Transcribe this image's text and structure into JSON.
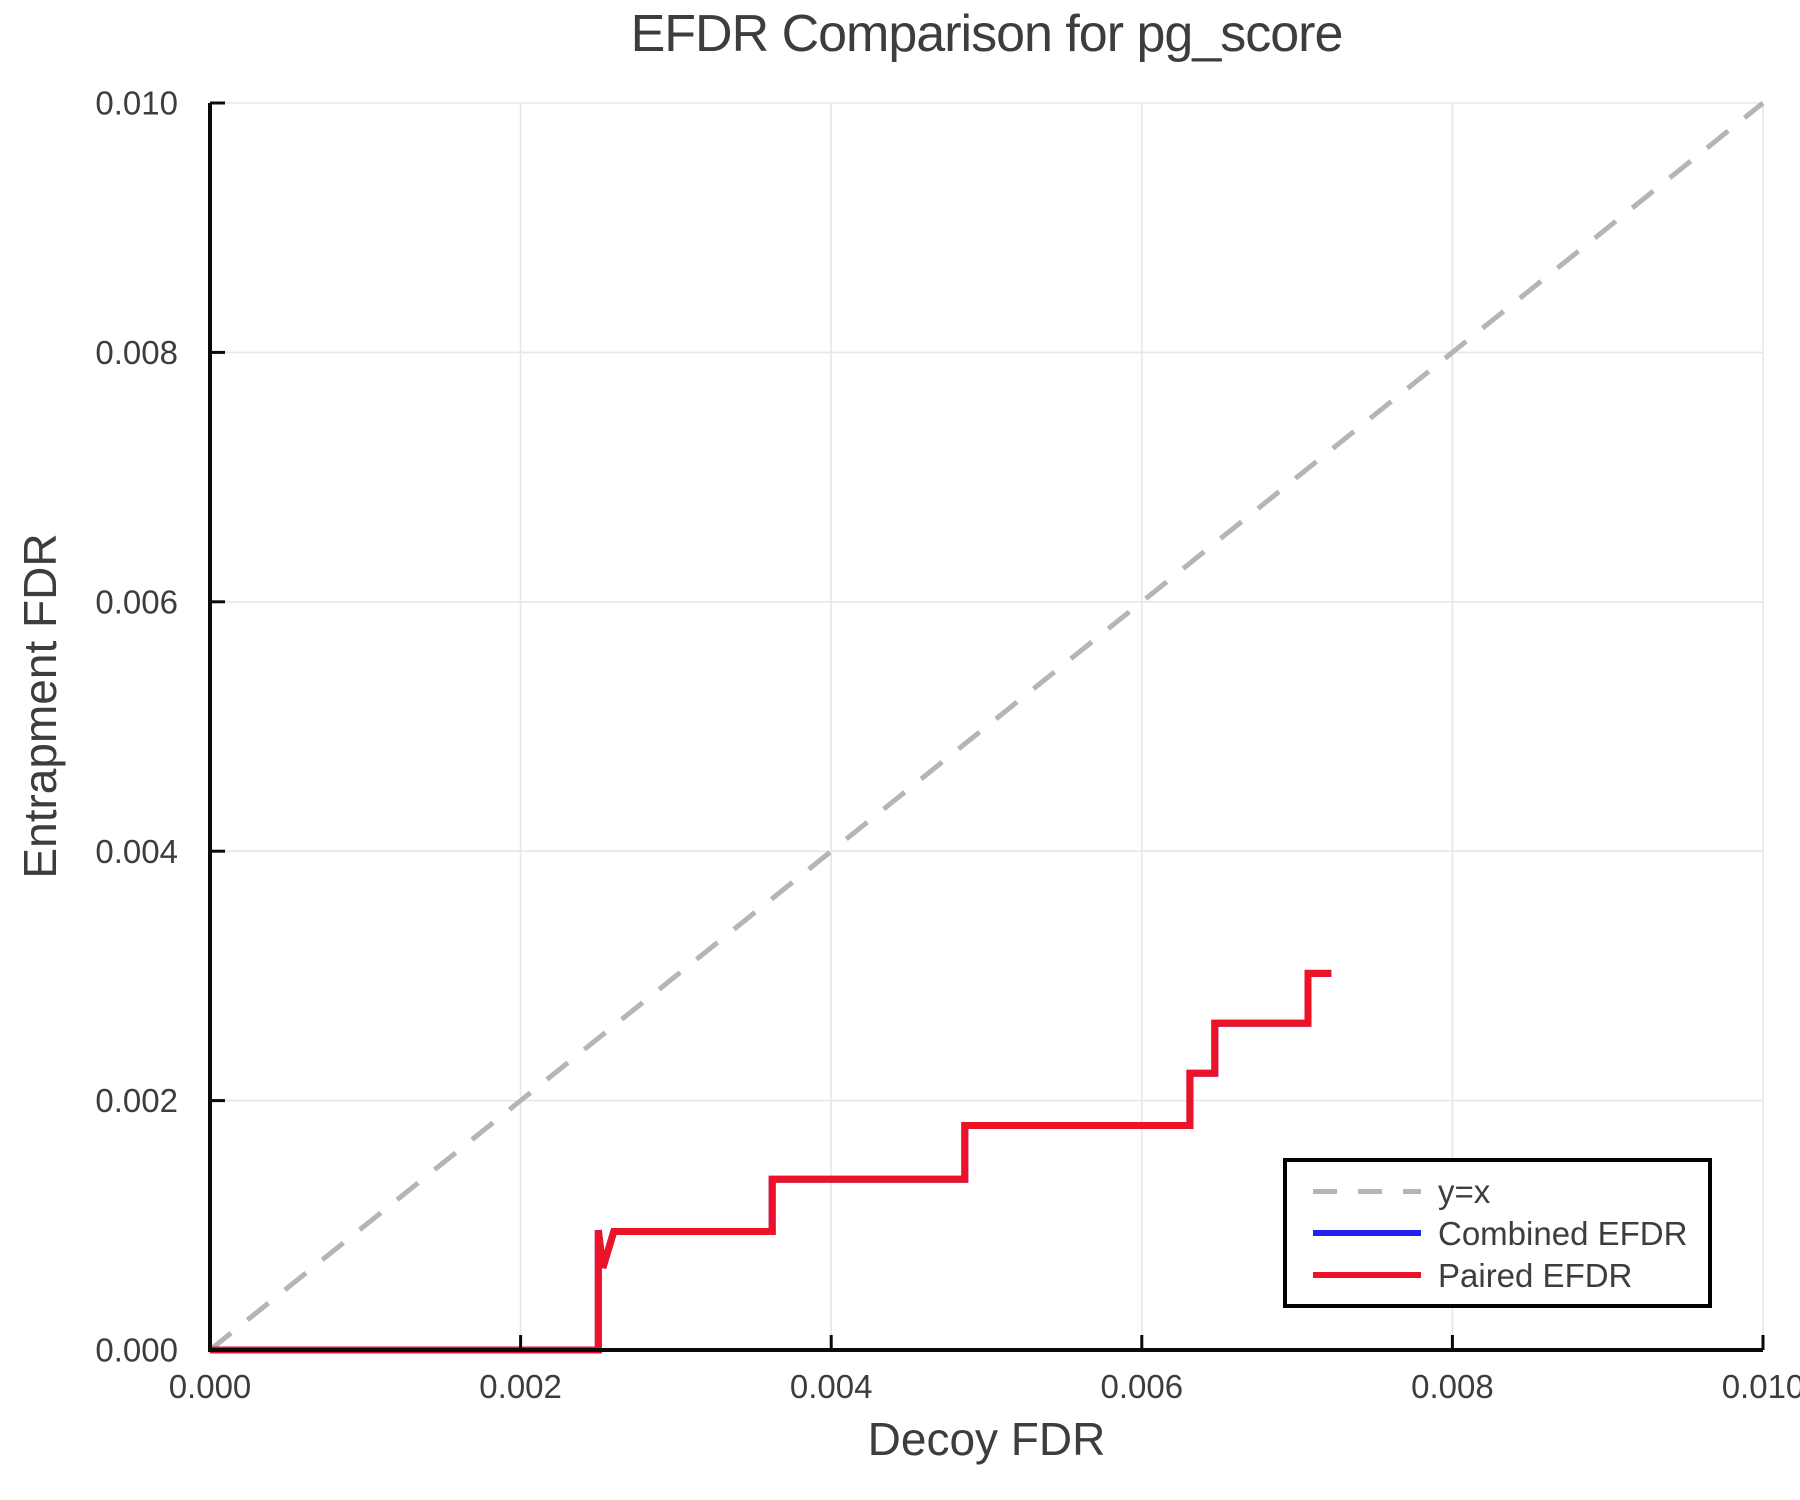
{
  "title": "EFDR Comparison for pg_score",
  "colors": {
    "text": "#3d3d3d",
    "grid": "#e7e7e7",
    "spine": "#0a0a0a",
    "background": "#ffffff"
  },
  "chart_data": {
    "type": "line",
    "title": "EFDR Comparison for pg_score",
    "xlabel": "Decoy FDR",
    "ylabel": "Entrapment FDR",
    "xlim": [
      0.0,
      0.01
    ],
    "ylim": [
      0.0,
      0.01
    ],
    "grid": true,
    "legend_position": "bottom-right",
    "xticks": {
      "values": [
        0.0,
        0.002,
        0.004,
        0.006,
        0.008,
        0.01
      ],
      "labels": [
        "0.000",
        "0.002",
        "0.004",
        "0.006",
        "0.008",
        "0.010"
      ]
    },
    "yticks": {
      "values": [
        0.0,
        0.002,
        0.004,
        0.006,
        0.008,
        0.01
      ],
      "labels": [
        "0.000",
        "0.002",
        "0.004",
        "0.006",
        "0.008",
        "0.010"
      ]
    },
    "series": [
      {
        "name": "y=x",
        "style": "dashed",
        "color": "#b5b5b5",
        "stroke_width": 5,
        "points": [
          [
            0.0,
            0.0
          ],
          [
            0.01,
            0.01
          ]
        ]
      },
      {
        "name": "Combined EFDR",
        "style": "solid",
        "color": "#2222ee",
        "stroke_width": 7,
        "points": [
          [
            0.0,
            0.0
          ],
          [
            0.0025,
            0.0
          ],
          [
            0.0025,
            0.00096
          ],
          [
            0.00253,
            0.00066
          ],
          [
            0.0026,
            0.00095
          ],
          [
            0.00362,
            0.00095
          ],
          [
            0.00362,
            0.00137
          ],
          [
            0.00486,
            0.00137
          ],
          [
            0.00486,
            0.0018
          ],
          [
            0.00631,
            0.0018
          ],
          [
            0.00631,
            0.00222
          ],
          [
            0.00647,
            0.00222
          ],
          [
            0.00647,
            0.00262
          ],
          [
            0.00707,
            0.00262
          ],
          [
            0.00707,
            0.00302
          ],
          [
            0.00722,
            0.00302
          ]
        ]
      },
      {
        "name": "Paired EFDR",
        "style": "solid",
        "color": "#ec1228",
        "stroke_width": 7,
        "points": [
          [
            0.0,
            0.0
          ],
          [
            0.0025,
            0.0
          ],
          [
            0.0025,
            0.00096
          ],
          [
            0.00253,
            0.00066
          ],
          [
            0.0026,
            0.00095
          ],
          [
            0.00362,
            0.00095
          ],
          [
            0.00362,
            0.00137
          ],
          [
            0.00486,
            0.00137
          ],
          [
            0.00486,
            0.0018
          ],
          [
            0.00631,
            0.0018
          ],
          [
            0.00631,
            0.00222
          ],
          [
            0.00647,
            0.00222
          ],
          [
            0.00647,
            0.00262
          ],
          [
            0.00707,
            0.00262
          ],
          [
            0.00707,
            0.00302
          ],
          [
            0.00722,
            0.00302
          ]
        ]
      }
    ]
  }
}
